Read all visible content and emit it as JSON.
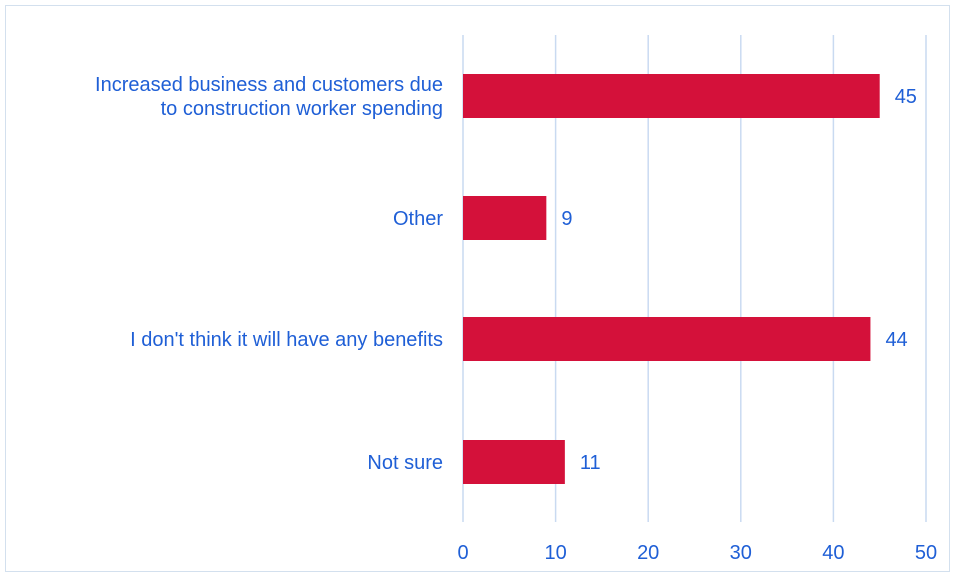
{
  "chart_data": {
    "type": "bar",
    "orientation": "horizontal",
    "categories": [
      [
        "Increased business and customers due",
        "to construction worker spending"
      ],
      [
        "Other"
      ],
      [
        "I don't think it will have any benefits"
      ],
      [
        "Not sure"
      ]
    ],
    "values": [
      45,
      9,
      44,
      11
    ],
    "xlim": [
      0,
      50
    ],
    "xticks": [
      "0",
      "10",
      "20",
      "30",
      "40",
      "50"
    ],
    "grid": true,
    "legend": "none",
    "bar_color": "#d4113a",
    "text_color": "#1f5fd6",
    "grid_color": "#c9daf1"
  }
}
